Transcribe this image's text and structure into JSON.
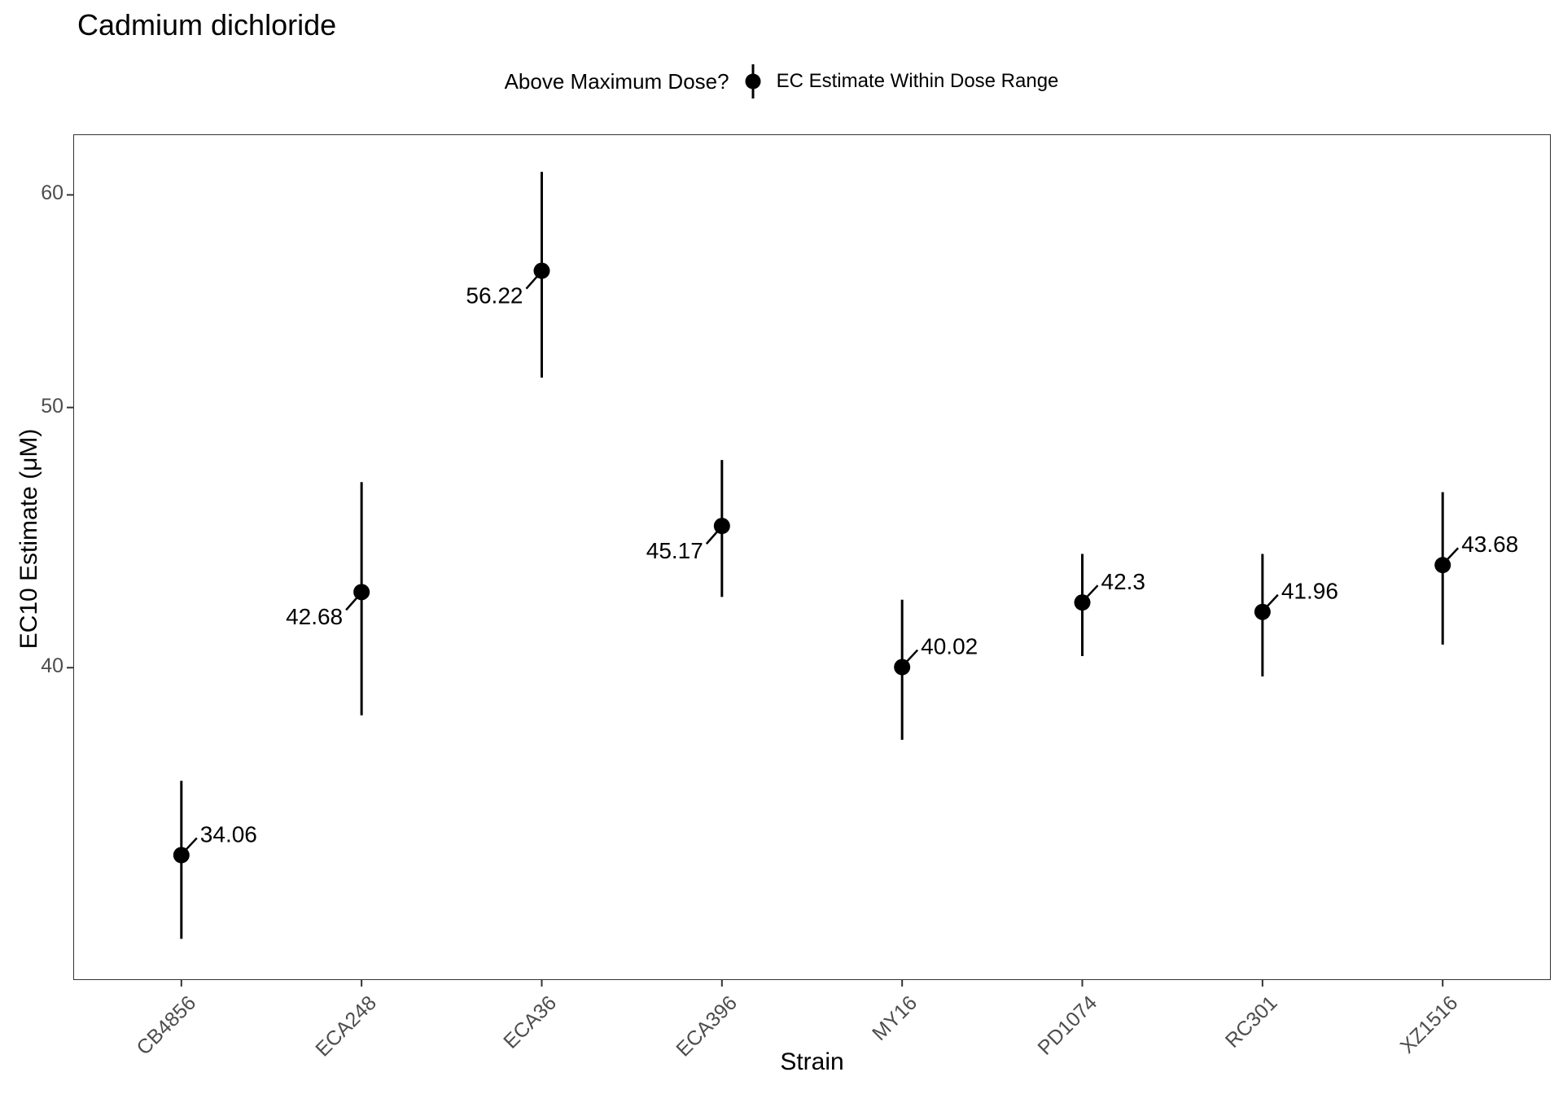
{
  "chart_data": {
    "type": "pointrange",
    "title": "Cadmium dichloride",
    "xlabel": "Strain",
    "ylabel": "EC10 Estimate (μM)",
    "y_scale": "log10",
    "y_ticks": [
      60,
      50,
      40
    ],
    "ylim": [
      30.6,
      63.2
    ],
    "grid": "off",
    "x_tick_angle_deg": 45,
    "legend": {
      "position": "top",
      "title": "Above Maximum Dose?",
      "items": [
        {
          "symbol": "pointrange",
          "label": "EC Estimate Within Dose Range"
        }
      ]
    },
    "categories": [
      "CB4856",
      "ECA248",
      "ECA36",
      "ECA396",
      "MY16",
      "PD1074",
      "RC301",
      "XZ1516"
    ],
    "points": [
      {
        "strain": "CB4856",
        "estimate": 34.06,
        "ci_low": 31.7,
        "ci_high": 36.3,
        "label": "34.06",
        "label_side": "right"
      },
      {
        "strain": "ECA248",
        "estimate": 42.68,
        "ci_low": 38.4,
        "ci_high": 46.9,
        "label": "42.68",
        "label_side": "left"
      },
      {
        "strain": "ECA36",
        "estimate": 56.22,
        "ci_low": 51.3,
        "ci_high": 61.2,
        "label": "56.22",
        "label_side": "left"
      },
      {
        "strain": "ECA396",
        "estimate": 45.17,
        "ci_low": 42.5,
        "ci_high": 47.8,
        "label": "45.17",
        "label_side": "left"
      },
      {
        "strain": "MY16",
        "estimate": 40.02,
        "ci_low": 37.6,
        "ci_high": 42.4,
        "label": "40.02",
        "label_side": "right"
      },
      {
        "strain": "PD1074",
        "estimate": 42.3,
        "ci_low": 40.4,
        "ci_high": 44.1,
        "label": "42.3",
        "label_side": "right"
      },
      {
        "strain": "RC301",
        "estimate": 41.96,
        "ci_low": 39.7,
        "ci_high": 44.1,
        "label": "41.96",
        "label_side": "right"
      },
      {
        "strain": "XZ1516",
        "estimate": 43.68,
        "ci_low": 40.8,
        "ci_high": 46.5,
        "label": "43.68",
        "label_side": "right"
      }
    ],
    "colors": {
      "point": "#000000",
      "annotation_text": "#000000",
      "axis_text": "#4d4d4d",
      "panel_border": "#333333"
    }
  }
}
